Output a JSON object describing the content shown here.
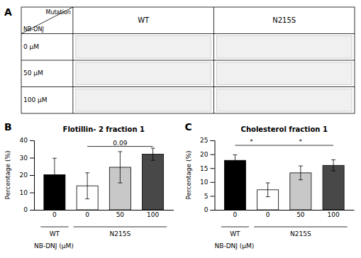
{
  "chart_data": [
    {
      "type": "table",
      "panel_label": "A",
      "columns": [
        "WT",
        "N215S"
      ],
      "rows": [
        "0 μM",
        "50 μM",
        "100 μM"
      ],
      "row_header": "NB-DNJ",
      "column_header": "Mutation"
    },
    {
      "type": "bar",
      "panel_label": "B",
      "title": "Flotillin- 2 fraction 1",
      "ylabel": "Percentage (%)",
      "xlabel": "NB-DNJ (μM)",
      "categories": [
        "0",
        "0",
        "50",
        "100"
      ],
      "group_labels": [
        "WT",
        "N215S",
        "N215S",
        "N215S"
      ],
      "values": [
        20.2,
        13.8,
        24.5,
        32.0
      ],
      "errors": [
        9.5,
        7.5,
        9.0,
        3.5
      ],
      "colors": [
        "#000000",
        "#ffffff",
        "#c8c8c8",
        "#484848"
      ],
      "ylim": [
        0,
        40
      ],
      "yticks": [
        0,
        10,
        20,
        30,
        40
      ],
      "annotations": [
        {
          "text": "0.09",
          "y": 36.5,
          "from": 1,
          "to": 3
        }
      ]
    },
    {
      "type": "bar",
      "panel_label": "C",
      "title": "Cholesterol fraction 1",
      "ylabel": "Percentage (%)",
      "xlabel": "NB-DNJ (μM)",
      "categories": [
        "0",
        "0",
        "50",
        "100"
      ],
      "group_labels": [
        "WT",
        "N215S",
        "N215S",
        "N215S"
      ],
      "values": [
        17.8,
        7.2,
        13.3,
        16.0
      ],
      "errors": [
        2.0,
        2.5,
        2.5,
        2.0
      ],
      "colors": [
        "#000000",
        "#ffffff",
        "#c8c8c8",
        "#484848"
      ],
      "ylim": [
        0,
        25
      ],
      "yticks": [
        0,
        5,
        10,
        15,
        20,
        25
      ],
      "annotations": [
        {
          "text": "*",
          "y": 23.2,
          "from": 0,
          "to": 1
        },
        {
          "text": "*",
          "y": 23.2,
          "from": 1,
          "to": 3
        }
      ]
    }
  ]
}
